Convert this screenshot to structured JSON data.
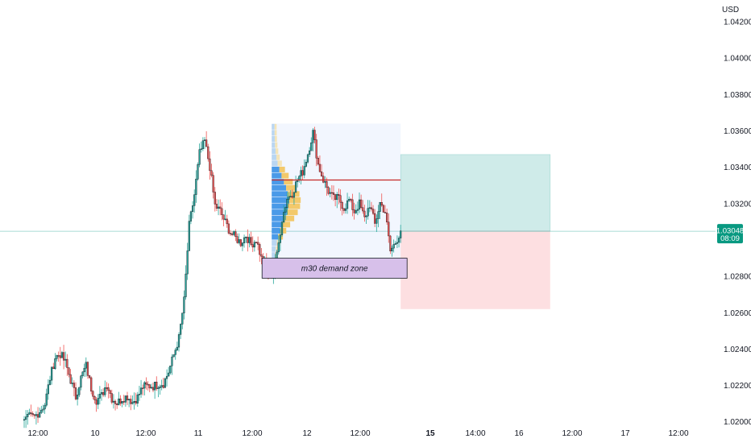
{
  "chart_data": {
    "type": "candlestick",
    "currency": "USD",
    "y_ticks": [
      "1.04200",
      "1.04000",
      "1.03800",
      "1.03600",
      "1.03400",
      "1.03200",
      "1.02800",
      "1.02600",
      "1.02400",
      "1.02200",
      "1.02000"
    ],
    "x_ticks": [
      "12:00",
      "10",
      "12:00",
      "11",
      "12:00",
      "12",
      "12:00",
      "15",
      "14:00",
      "16",
      "12:00",
      "17",
      "12:00"
    ],
    "x_ticks_bold": [
      "15"
    ],
    "ylim": [
      1.0199,
      1.0432
    ],
    "last_price": {
      "value": 1.03048,
      "label": "1.03048",
      "countdown": "08:09"
    },
    "price_series": [
      [
        0,
        1.02
      ],
      [
        4,
        1.021
      ],
      [
        6,
        1.0238
      ],
      [
        8,
        1.0232
      ],
      [
        10,
        1.0215
      ],
      [
        12,
        1.023
      ],
      [
        14,
        1.0212
      ],
      [
        16,
        1.022
      ],
      [
        18,
        1.021
      ],
      [
        20,
        1.0216
      ],
      [
        22,
        1.0211
      ],
      [
        24,
        1.0222
      ],
      [
        26,
        1.0218
      ],
      [
        28,
        1.0228
      ],
      [
        30,
        1.0245
      ],
      [
        31,
        1.0268
      ],
      [
        32,
        1.031
      ],
      [
        33,
        1.0322
      ],
      [
        34,
        1.0348
      ],
      [
        35,
        1.0356
      ],
      [
        36,
        1.034
      ],
      [
        37,
        1.032
      ],
      [
        38,
        1.0318
      ],
      [
        39,
        1.0308
      ],
      [
        41,
        1.0302
      ],
      [
        43,
        1.03
      ],
      [
        45,
        1.0298
      ],
      [
        46,
        1.029
      ],
      [
        47,
        1.0286
      ],
      [
        48,
        1.028
      ],
      [
        49,
        1.0292
      ],
      [
        50,
        1.031
      ],
      [
        51,
        1.0322
      ],
      [
        52,
        1.0328
      ],
      [
        53,
        1.0335
      ],
      [
        54,
        1.0338
      ],
      [
        55,
        1.035
      ],
      [
        56,
        1.0362
      ],
      [
        57,
        1.0342
      ],
      [
        58,
        1.0332
      ],
      [
        59,
        1.0326
      ],
      [
        60,
        1.032
      ],
      [
        61,
        1.0324
      ],
      [
        62,
        1.0318
      ],
      [
        63,
        1.0322
      ],
      [
        64,
        1.0316
      ],
      [
        65,
        1.0318
      ],
      [
        66,
        1.0312
      ],
      [
        67,
        1.032
      ],
      [
        68,
        1.031
      ],
      [
        69,
        1.0322
      ],
      [
        70,
        1.0314
      ],
      [
        71,
        1.0296
      ],
      [
        72,
        1.03
      ],
      [
        73,
        1.0305
      ]
    ],
    "demand_zone": {
      "label": "m30 demand zone",
      "x0": 48,
      "x1": 73,
      "y_top": 1.029,
      "y_bottom": 1.0279
    },
    "volume_profile": {
      "x0": 48,
      "x1": 73,
      "y_top": 1.0364,
      "y_bottom": 1.029
    },
    "poc_line": {
      "x0": 48,
      "x1": 73,
      "y": 1.0333
    },
    "position": {
      "x0": 73,
      "x1": 102,
      "entry": 1.03048,
      "target": 1.0347,
      "stop": 1.0262
    }
  }
}
